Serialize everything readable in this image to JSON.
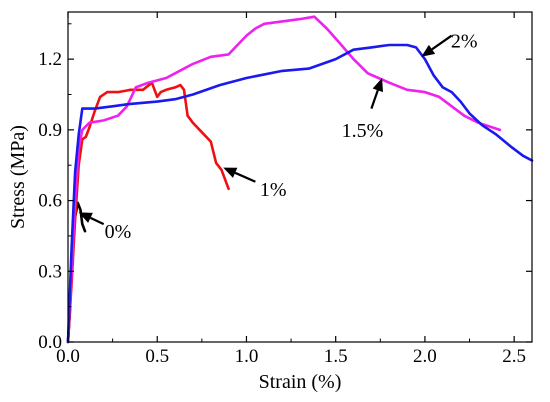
{
  "chart_data": {
    "type": "line",
    "title": "",
    "xlabel": "Strain (%)",
    "ylabel": "Stress (MPa)",
    "xlim": [
      0,
      2.6
    ],
    "ylim": [
      0,
      1.4
    ],
    "xticks": [
      0.0,
      0.5,
      1.0,
      1.5,
      2.0,
      2.5
    ],
    "xtick_labels": [
      "0.0",
      "0.5",
      "1.0",
      "1.5",
      "2.0",
      "2.5"
    ],
    "yticks": [
      0.0,
      0.3,
      0.6,
      0.9,
      1.2
    ],
    "ytick_labels": [
      "0.0",
      "0.3",
      "0.6",
      "0.9",
      "1.2"
    ],
    "grid": false,
    "legend": "none",
    "series": [
      {
        "key": "s0",
        "color": "#000000",
        "points": [
          [
            0.0,
            0.0
          ],
          [
            0.01,
            0.12
          ],
          [
            0.02,
            0.3
          ],
          [
            0.03,
            0.44
          ],
          [
            0.04,
            0.53
          ],
          [
            0.055,
            0.59
          ],
          [
            0.07,
            0.56
          ],
          [
            0.08,
            0.5
          ],
          [
            0.095,
            0.47
          ]
        ]
      },
      {
        "key": "s1",
        "color": "#ee1111",
        "points": [
          [
            0.0,
            0.0
          ],
          [
            0.02,
            0.25
          ],
          [
            0.04,
            0.52
          ],
          [
            0.06,
            0.75
          ],
          [
            0.08,
            0.86
          ],
          [
            0.1,
            0.87
          ],
          [
            0.12,
            0.91
          ],
          [
            0.15,
            0.98
          ],
          [
            0.18,
            1.04
          ],
          [
            0.22,
            1.06
          ],
          [
            0.28,
            1.06
          ],
          [
            0.35,
            1.07
          ],
          [
            0.42,
            1.07
          ],
          [
            0.47,
            1.1
          ],
          [
            0.5,
            1.04
          ],
          [
            0.52,
            1.06
          ],
          [
            0.55,
            1.07
          ],
          [
            0.6,
            1.08
          ],
          [
            0.63,
            1.09
          ],
          [
            0.65,
            1.07
          ],
          [
            0.67,
            0.96
          ],
          [
            0.7,
            0.93
          ],
          [
            0.75,
            0.89
          ],
          [
            0.8,
            0.85
          ],
          [
            0.83,
            0.76
          ],
          [
            0.86,
            0.73
          ],
          [
            0.9,
            0.65
          ]
        ]
      },
      {
        "key": "s15",
        "color": "#ee22ee",
        "points": [
          [
            0.0,
            0.0
          ],
          [
            0.02,
            0.3
          ],
          [
            0.04,
            0.6
          ],
          [
            0.06,
            0.82
          ],
          [
            0.08,
            0.9
          ],
          [
            0.12,
            0.93
          ],
          [
            0.2,
            0.94
          ],
          [
            0.28,
            0.96
          ],
          [
            0.33,
            1.0
          ],
          [
            0.38,
            1.08
          ],
          [
            0.45,
            1.1
          ],
          [
            0.5,
            1.11
          ],
          [
            0.55,
            1.12
          ],
          [
            0.6,
            1.14
          ],
          [
            0.7,
            1.18
          ],
          [
            0.8,
            1.21
          ],
          [
            0.9,
            1.22
          ],
          [
            0.95,
            1.26
          ],
          [
            1.0,
            1.3
          ],
          [
            1.05,
            1.33
          ],
          [
            1.1,
            1.35
          ],
          [
            1.2,
            1.36
          ],
          [
            1.3,
            1.37
          ],
          [
            1.38,
            1.38
          ],
          [
            1.45,
            1.33
          ],
          [
            1.52,
            1.27
          ],
          [
            1.6,
            1.2
          ],
          [
            1.68,
            1.14
          ],
          [
            1.74,
            1.12
          ],
          [
            1.8,
            1.1
          ],
          [
            1.9,
            1.07
          ],
          [
            2.0,
            1.06
          ],
          [
            2.08,
            1.04
          ],
          [
            2.15,
            1.0
          ],
          [
            2.22,
            0.96
          ],
          [
            2.3,
            0.93
          ],
          [
            2.38,
            0.91
          ],
          [
            2.42,
            0.9
          ]
        ]
      },
      {
        "key": "s2",
        "color": "#1a1aee",
        "points": [
          [
            0.0,
            0.0
          ],
          [
            0.02,
            0.4
          ],
          [
            0.04,
            0.72
          ],
          [
            0.06,
            0.88
          ],
          [
            0.08,
            0.99
          ],
          [
            0.15,
            0.99
          ],
          [
            0.25,
            1.0
          ],
          [
            0.35,
            1.01
          ],
          [
            0.5,
            1.02
          ],
          [
            0.6,
            1.03
          ],
          [
            0.7,
            1.05
          ],
          [
            0.85,
            1.09
          ],
          [
            1.0,
            1.12
          ],
          [
            1.2,
            1.15
          ],
          [
            1.35,
            1.16
          ],
          [
            1.5,
            1.2
          ],
          [
            1.6,
            1.24
          ],
          [
            1.7,
            1.25
          ],
          [
            1.8,
            1.26
          ],
          [
            1.9,
            1.26
          ],
          [
            1.95,
            1.25
          ],
          [
            2.0,
            1.2
          ],
          [
            2.05,
            1.13
          ],
          [
            2.1,
            1.08
          ],
          [
            2.15,
            1.06
          ],
          [
            2.2,
            1.02
          ],
          [
            2.25,
            0.97
          ],
          [
            2.32,
            0.92
          ],
          [
            2.4,
            0.88
          ],
          [
            2.48,
            0.83
          ],
          [
            2.55,
            0.79
          ],
          [
            2.6,
            0.77
          ]
        ]
      }
    ],
    "annotations": [
      {
        "key": "a0",
        "text": "0%",
        "tip": [
          0.06,
          0.55
        ],
        "tail": [
          0.2,
          0.5
        ],
        "label_at": [
          0.28,
          0.47
        ]
      },
      {
        "key": "a1",
        "text": "1%",
        "tip": [
          0.87,
          0.74
        ],
        "tail": [
          1.05,
          0.68
        ],
        "label_at": [
          1.15,
          0.65
        ]
      },
      {
        "key": "a15",
        "text": "1.5%",
        "tip": [
          1.76,
          1.12
        ],
        "tail": [
          1.7,
          0.99
        ],
        "label_at": [
          1.65,
          0.9
        ]
      },
      {
        "key": "a2",
        "text": "2%",
        "tip": [
          1.98,
          1.21
        ],
        "tail": [
          2.15,
          1.3
        ],
        "label_at": [
          2.22,
          1.28
        ]
      }
    ]
  }
}
